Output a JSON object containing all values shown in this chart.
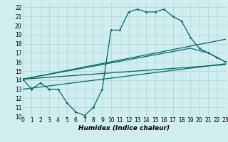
{
  "title": "",
  "xlabel": "Humidex (Indice chaleur)",
  "ylabel": "",
  "background_color": "#d0eef0",
  "grid_color": "#b0d8d8",
  "line_color": "#006666",
  "x_ticks": [
    0,
    1,
    2,
    3,
    4,
    5,
    6,
    7,
    8,
    9,
    10,
    11,
    12,
    13,
    14,
    15,
    16,
    17,
    18,
    19,
    20,
    21,
    22,
    23
  ],
  "y_ticks": [
    10,
    11,
    12,
    13,
    14,
    15,
    16,
    17,
    18,
    19,
    20,
    21,
    22
  ],
  "xlim": [
    0,
    23
  ],
  "ylim": [
    10,
    22.5
  ],
  "curve1_x": [
    0,
    1,
    2,
    3,
    4,
    5,
    6,
    7,
    8,
    9,
    10,
    11,
    12,
    13,
    14,
    15,
    16,
    17,
    18,
    19,
    20,
    21,
    22,
    23
  ],
  "curve1_y": [
    14.1,
    13.0,
    13.7,
    13.0,
    13.0,
    11.5,
    10.5,
    10.1,
    11.0,
    13.0,
    19.5,
    19.5,
    21.5,
    21.8,
    21.5,
    21.5,
    21.8,
    21.0,
    20.5,
    18.7,
    17.5,
    17.0,
    16.5,
    16.0
  ],
  "curve2_x": [
    0,
    23
  ],
  "curve2_y": [
    14.1,
    18.5
  ],
  "curve3_x": [
    0,
    19,
    21,
    23
  ],
  "curve3_y": [
    14.1,
    17.5,
    17.0,
    16.0
  ],
  "curve4_x": [
    0,
    23
  ],
  "curve4_y": [
    14.1,
    15.7
  ],
  "curve5_x": [
    0,
    23
  ],
  "curve5_y": [
    13.0,
    15.8
  ]
}
